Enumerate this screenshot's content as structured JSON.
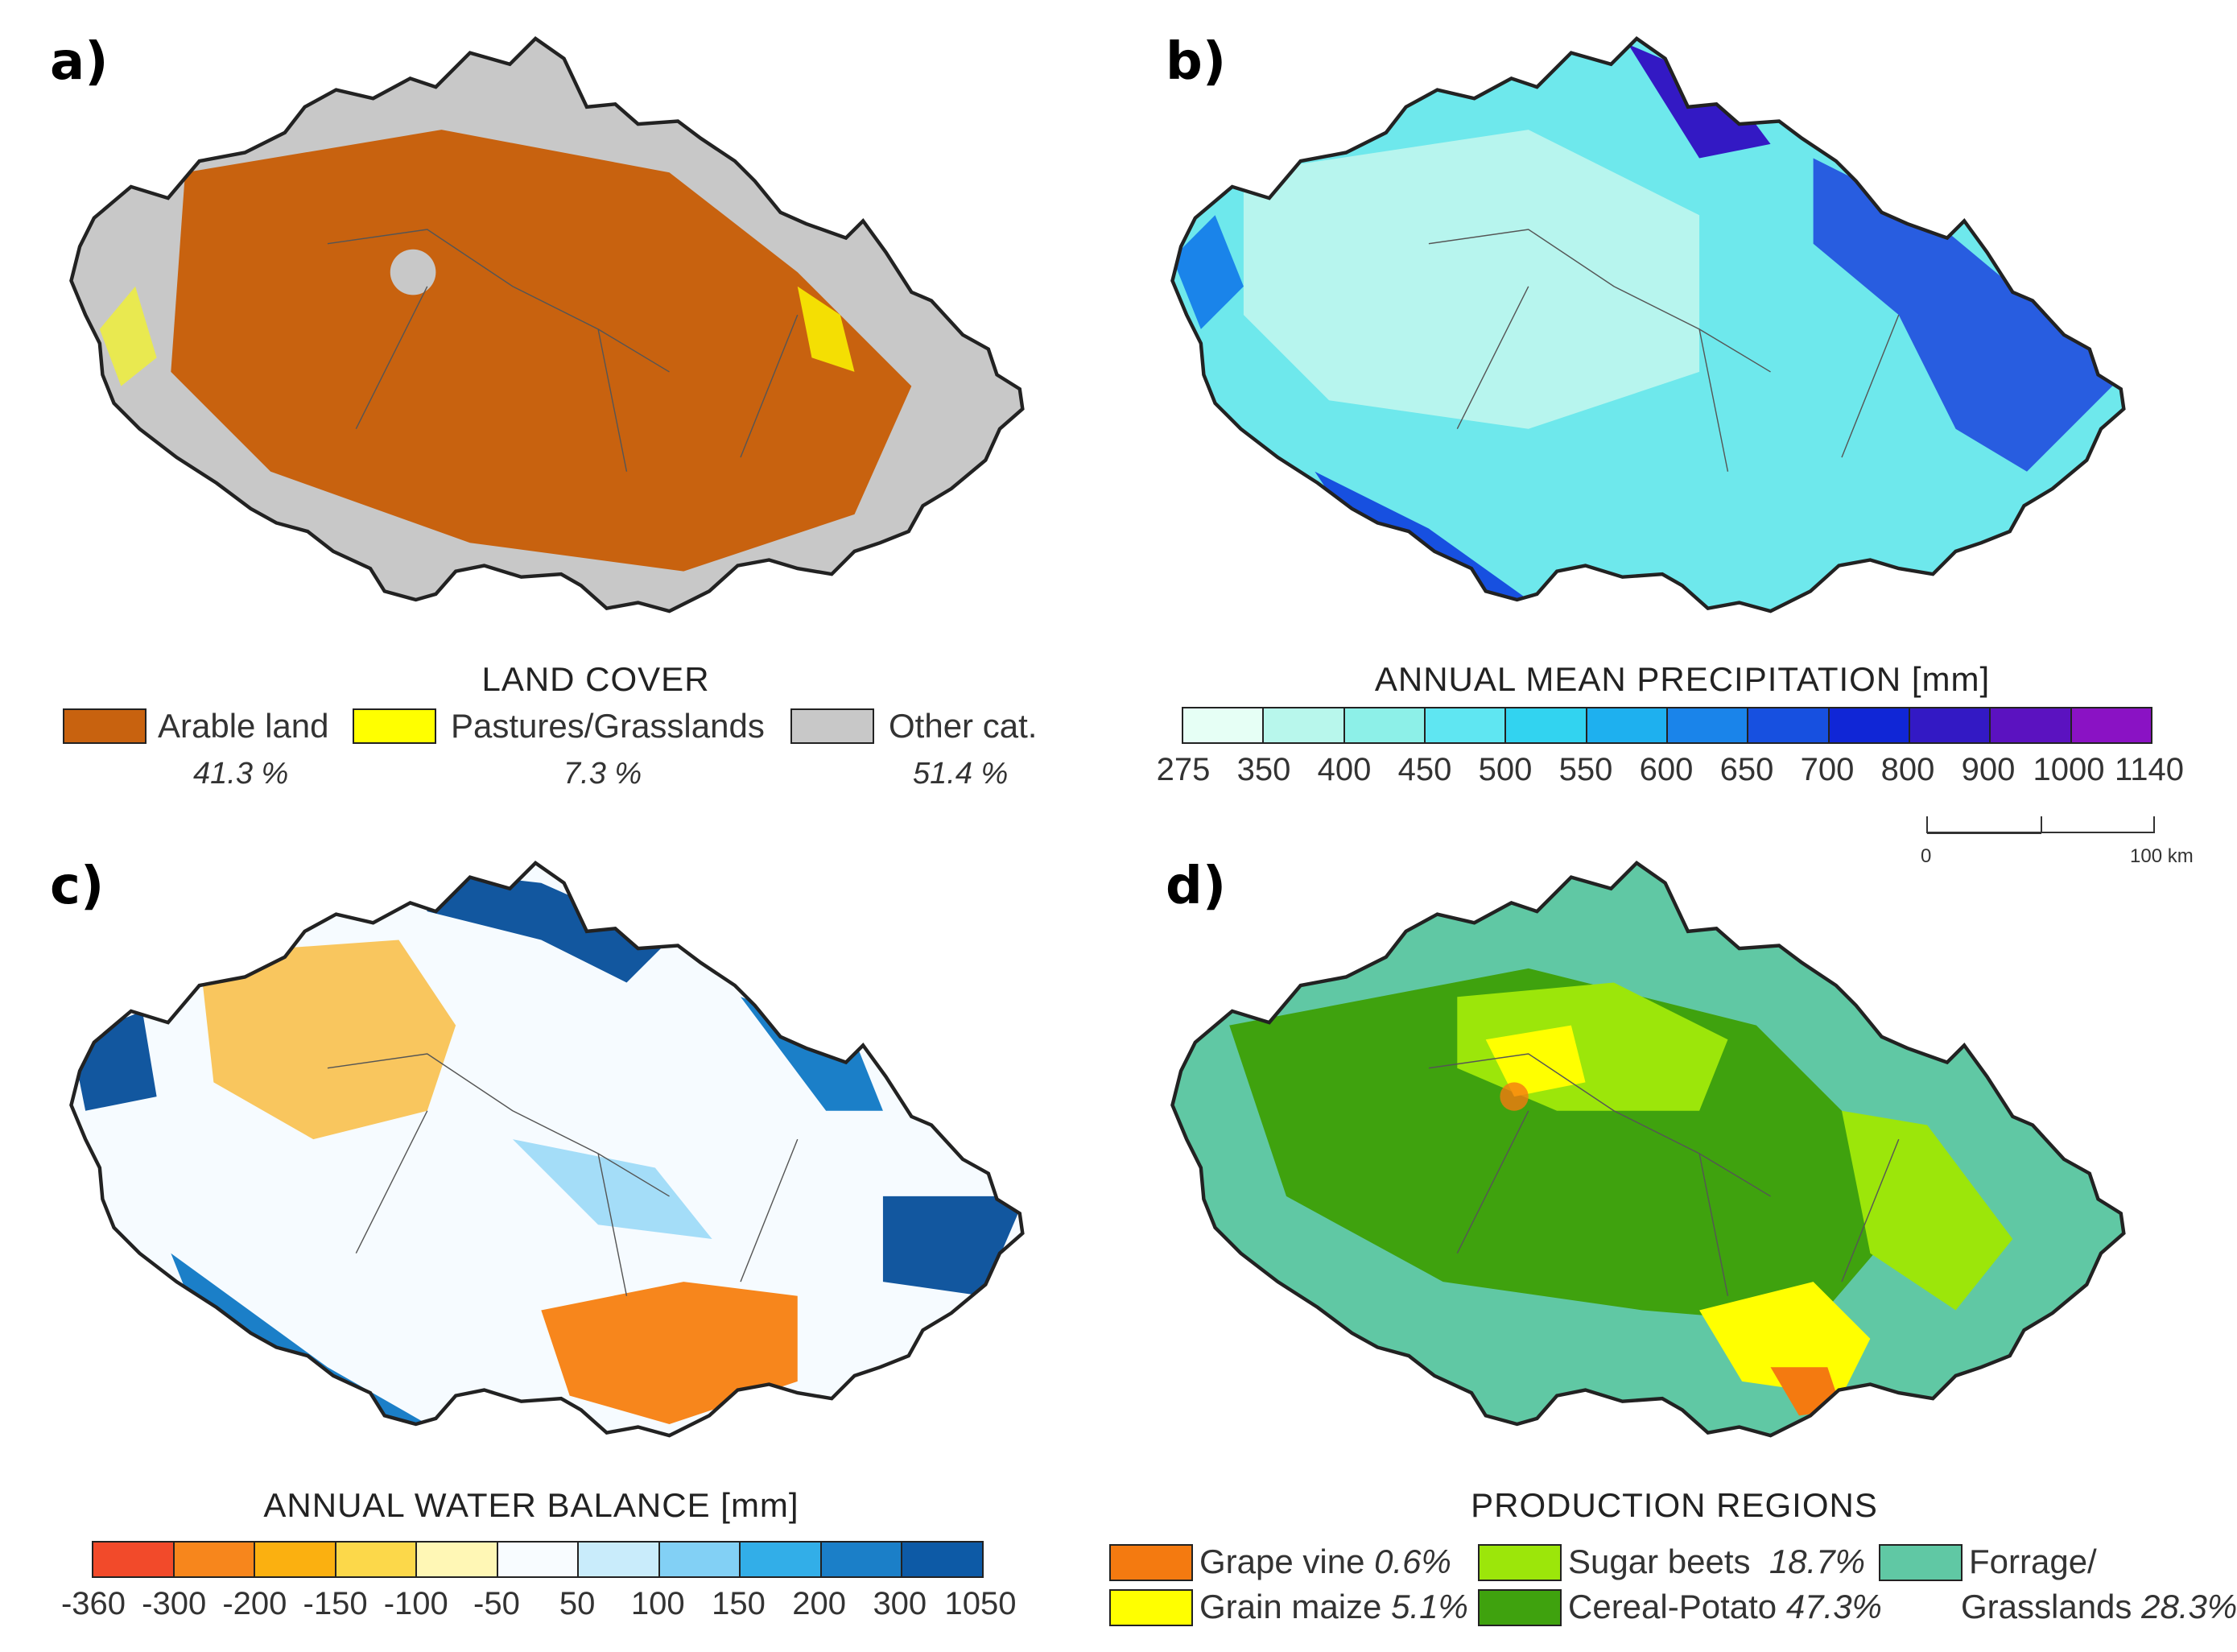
{
  "panels": {
    "a": {
      "letter": "a)",
      "title": "LAND COVER"
    },
    "b": {
      "letter": "b)",
      "title": "ANNUAL MEAN PRECIPITATION [mm]"
    },
    "c": {
      "letter": "c)",
      "title": "ANNUAL WATER BALANCE [mm]"
    },
    "d": {
      "letter": "d)",
      "title": "PRODUCTION REGIONS"
    }
  },
  "land_cover_legend": [
    {
      "label": "Arable land",
      "pct": "41.3 %",
      "color": "#c8620f"
    },
    {
      "label": "Pastures/Grasslands",
      "pct": "7.3 %",
      "color": "#ffff00"
    },
    {
      "label": "Other cat.",
      "pct": "51.4 %",
      "color": "#c8c8c8"
    }
  ],
  "precip_colorbar": {
    "colors": [
      "#e6fff5",
      "#b8f7ec",
      "#8df0e8",
      "#5fe6f2",
      "#32d3f0",
      "#1eb0ef",
      "#1a84ea",
      "#1750e0",
      "#1026d6",
      "#3319c4",
      "#5b12c0",
      "#8a12c4"
    ],
    "ticks": [
      "275",
      "350",
      "400",
      "450",
      "500",
      "550",
      "600",
      "650",
      "700",
      "800",
      "900",
      "1000",
      "1140"
    ]
  },
  "scale_bar": {
    "start": "0",
    "end": "100 km"
  },
  "water_colorbar": {
    "colors": [
      "#f24a2a",
      "#f7861c",
      "#fbb010",
      "#fcd84a",
      "#fff7b5",
      "#f8fcff",
      "#c9ecfb",
      "#82d0f5",
      "#32aee8",
      "#1b7fc8",
      "#0d5aa6"
    ],
    "ticks": [
      "-360",
      "-300",
      "-200",
      "-150",
      "-100",
      "-50",
      "50",
      "100",
      "150",
      "200",
      "300",
      "1050"
    ]
  },
  "production_legend": {
    "items": [
      {
        "name": "Grape vine",
        "pct": "0.6%",
        "color": "#f47a10"
      },
      {
        "name": "Grain maize",
        "pct": "5.1%",
        "color": "#ffff00"
      },
      {
        "name": "Sugar beets",
        "pct": "18.7%",
        "color": "#9ce60a"
      },
      {
        "name": "Cereal-Potato",
        "pct": "47.3%",
        "color": "#3fa20e"
      },
      {
        "name": "Forrage/",
        "pct": "",
        "color": "#60c8a4"
      }
    ],
    "forage_line2": "Grasslands",
    "forage_pct": "28.3%"
  },
  "colors": {
    "a_base": "#c8c8c8",
    "a_main": "#c8620f",
    "a_accent": "#ffff00",
    "b_base": "#6ee8ec",
    "b_main": "#b7f5ee",
    "b_accent": "#1c44de",
    "c_base": "#f6fbff",
    "c_main": "#f9b428",
    "c_accent": "#12579f",
    "d_base": "#60c8a4",
    "d_main": "#3fa20e",
    "d_accent": "#9ce60a"
  }
}
